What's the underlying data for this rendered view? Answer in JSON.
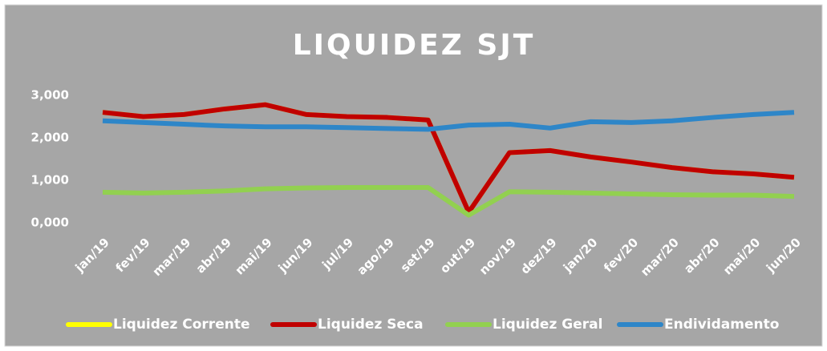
{
  "chart_data": {
    "type": "line",
    "title": "LIQUIDEZ SJT",
    "categories": [
      "jan/19",
      "fev/19",
      "mar/19",
      "abr/19",
      "mai/19",
      "jun/19",
      "jul/19",
      "ago/19",
      "set/19",
      "out/19",
      "nov/19",
      "dez/19",
      "jan/20",
      "fev/20",
      "mar/20",
      "abr/20",
      "mai/20",
      "jun/20"
    ],
    "series": [
      {
        "name": "Liquidez Corrente",
        "color": "#ffff00",
        "values": [
          2.6,
          2.5,
          2.55,
          2.68,
          2.78,
          2.55,
          2.5,
          2.48,
          2.42,
          0.25,
          1.65,
          1.7,
          1.55,
          1.43,
          1.3,
          1.2,
          1.15,
          1.07
        ]
      },
      {
        "name": "Liquidez Seca",
        "color": "#c00000",
        "values": [
          2.6,
          2.5,
          2.55,
          2.68,
          2.78,
          2.55,
          2.5,
          2.48,
          2.42,
          0.25,
          1.65,
          1.7,
          1.55,
          1.43,
          1.3,
          1.2,
          1.15,
          1.07
        ]
      },
      {
        "name": "Liquidez Geral",
        "color": "#92d050",
        "values": [
          0.72,
          0.7,
          0.72,
          0.75,
          0.8,
          0.82,
          0.83,
          0.83,
          0.83,
          0.18,
          0.73,
          0.72,
          0.7,
          0.68,
          0.66,
          0.65,
          0.65,
          0.62
        ]
      },
      {
        "name": "Endividamento",
        "color": "#2e86c8",
        "values": [
          2.4,
          2.36,
          2.32,
          2.28,
          2.26,
          2.26,
          2.24,
          2.22,
          2.2,
          2.3,
          2.32,
          2.23,
          2.38,
          2.36,
          2.4,
          2.48,
          2.55,
          2.6
        ]
      }
    ],
    "ylim": [
      0,
      3
    ],
    "yticks": [
      {
        "value": 0,
        "label": "0,000"
      },
      {
        "value": 1,
        "label": "1,000"
      },
      {
        "value": 2,
        "label": "2,000"
      },
      {
        "value": 3,
        "label": "3,000"
      }
    ],
    "grid": false
  }
}
